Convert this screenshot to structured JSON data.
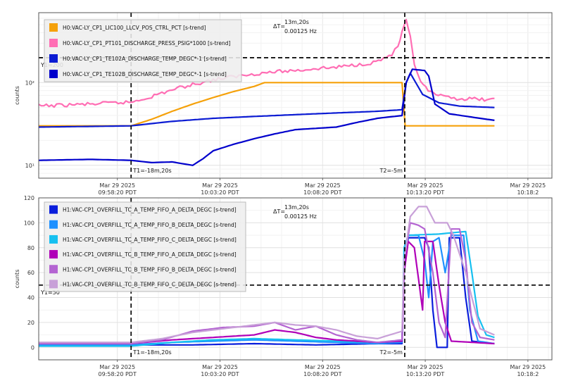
{
  "chart_data": [
    {
      "type": "line",
      "yscale": "log",
      "ylabel": "counts",
      "ylim": [
        7,
        700
      ],
      "x_unit": "minutes",
      "xlim": [
        -4.5,
        20.5
      ],
      "yticks": [
        {
          "v": 10,
          "label": "10¹"
        },
        {
          "v": 100,
          "label": "10²"
        }
      ],
      "xticks": [
        {
          "v": -0.67,
          "date": "Mar 29 2025",
          "time": "09:58:20 PDT"
        },
        {
          "v": 4.33,
          "date": "Mar 29 2025",
          "time": "10:03:20 PDT"
        },
        {
          "v": 9.33,
          "date": "Mar 29 2025",
          "time": "10:08:20 PDT"
        },
        {
          "v": 14.33,
          "date": "Mar 29 2025",
          "time": "10:13:20 PDT"
        },
        {
          "v": 19.33,
          "date": "Mar 29 2025",
          "time": "10:18:2"
        }
      ],
      "cursors": {
        "t1": {
          "x": 0,
          "label": "T1=-18m,20s"
        },
        "t2": {
          "x": 13.33,
          "label": "T2=-5m"
        },
        "y1": {
          "y": 200,
          "label": "Y1=200"
        },
        "delta": {
          "label": "ΔT=",
          "value": "13m,20s",
          "freq": "0.00125 Hz"
        }
      },
      "series": [
        {
          "name": "H0:VAC-LY_CP1_LIC100_LLCV_POS_CTRL_PCT [s-trend]",
          "color": "#f5a10a",
          "points": [
            [
              -4.5,
              30
            ],
            [
              0,
              30
            ],
            [
              1,
              36
            ],
            [
              2,
              45
            ],
            [
              3,
              55
            ],
            [
              4,
              66
            ],
            [
              5,
              78
            ],
            [
              6,
              90
            ],
            [
              6.5,
              100
            ],
            [
              13.2,
              100
            ],
            [
              13.35,
              30
            ],
            [
              17.7,
              30
            ]
          ]
        },
        {
          "name": "H0:VAC-LY_CP1_PT101_DISCHARGE_PRESS_PSIG*1000 [s-trend]",
          "color": "#ff6eb4",
          "points": [
            [
              -4.5,
              52
            ],
            [
              -2,
              55
            ],
            [
              0,
              58
            ],
            [
              1,
              68
            ],
            [
              2,
              82
            ],
            [
              3,
              95
            ],
            [
              4,
              108
            ],
            [
              5,
              118
            ],
            [
              6,
              128
            ],
            [
              7,
              135
            ],
            [
              8,
              140
            ],
            [
              9,
              148
            ],
            [
              10,
              153
            ],
            [
              11,
              165
            ],
            [
              11.8,
              175
            ],
            [
              12.3,
              195
            ],
            [
              12.7,
              220
            ],
            [
              13.0,
              270
            ],
            [
              13.2,
              400
            ],
            [
              13.4,
              550
            ],
            [
              13.6,
              350
            ],
            [
              13.8,
              170
            ],
            [
              14.1,
              100
            ],
            [
              14.6,
              75
            ],
            [
              15.2,
              67
            ],
            [
              16,
              64
            ],
            [
              17.7,
              62
            ]
          ]
        },
        {
          "name": "H0:VAC-LY_CP1_TE102A_DISCHARGE_TEMP_DEGC*-1 [s-trend]",
          "color": "#0b1bd3",
          "points": [
            [
              -4.5,
              29
            ],
            [
              0,
              30
            ],
            [
              2,
              34
            ],
            [
              4,
              37
            ],
            [
              6,
              39
            ],
            [
              8,
              41
            ],
            [
              10,
              43
            ],
            [
              12,
              45
            ],
            [
              13.2,
              47
            ],
            [
              13.4,
              100
            ],
            [
              13.6,
              130
            ],
            [
              14.2,
              72
            ],
            [
              15,
              57
            ],
            [
              16,
              52
            ],
            [
              17.7,
              50
            ]
          ]
        },
        {
          "name": "H0:VAC-LY_CP1_TE102B_DISCHARGE_TEMP_DEGC*-1 [s-trend]",
          "color": "#0000cc",
          "points": [
            [
              -4.5,
              11.5
            ],
            [
              -2,
              11.8
            ],
            [
              0,
              11.5
            ],
            [
              1,
              10.8
            ],
            [
              2,
              11
            ],
            [
              3,
              10
            ],
            [
              3.5,
              12
            ],
            [
              4,
              15
            ],
            [
              5,
              18
            ],
            [
              6,
              21
            ],
            [
              7,
              24
            ],
            [
              8,
              27
            ],
            [
              9,
              28
            ],
            [
              10,
              29
            ],
            [
              11,
              33
            ],
            [
              12,
              37
            ],
            [
              13.2,
              40
            ],
            [
              13.4,
              100
            ],
            [
              13.7,
              145
            ],
            [
              14.3,
              140
            ],
            [
              14.5,
              120
            ],
            [
              14.8,
              55
            ],
            [
              15.5,
              42
            ],
            [
              17,
              37
            ],
            [
              17.7,
              35
            ]
          ]
        }
      ]
    },
    {
      "type": "line",
      "ylabel": "counts",
      "ylim": [
        -10,
        120
      ],
      "x_unit": "minutes",
      "xlim": [
        -4.5,
        20.5
      ],
      "yticks": [
        {
          "v": 0,
          "label": "0"
        },
        {
          "v": 20,
          "label": "20"
        },
        {
          "v": 40,
          "label": "40"
        },
        {
          "v": 60,
          "label": "60"
        },
        {
          "v": 80,
          "label": "80"
        },
        {
          "v": 100,
          "label": "100"
        },
        {
          "v": 120,
          "label": "120"
        }
      ],
      "xticks": [
        {
          "v": -0.67,
          "date": "Mar 29 2025",
          "time": "09:58:20 PDT"
        },
        {
          "v": 4.33,
          "date": "Mar 29 2025",
          "time": "10:03:20 PDT"
        },
        {
          "v": 9.33,
          "date": "Mar 29 2025",
          "time": "10:08:20 PDT"
        },
        {
          "v": 14.33,
          "date": "Mar 29 2025",
          "time": "10:13:20 PDT"
        },
        {
          "v": 19.33,
          "date": "Mar 29 2025",
          "time": "10:18:2"
        }
      ],
      "cursors": {
        "t1": {
          "x": 0,
          "label": "T1=-18m,20s"
        },
        "t2": {
          "x": 13.33,
          "label": "T2=-5m"
        },
        "y1": {
          "y": 50,
          "label": "Y1=50"
        },
        "delta": {
          "label": "ΔT=",
          "value": "13m,20s",
          "freq": "0.00125 Hz"
        }
      },
      "series": [
        {
          "name": "H1:VAC-CP1_OVERFILL_TC_A_TEMP_FIFO_A_DELTA_DEGC [s-trend]",
          "color": "#0a1edc",
          "points": [
            [
              -4.5,
              2
            ],
            [
              0,
              2
            ],
            [
              3,
              2
            ],
            [
              6,
              3
            ],
            [
              9,
              2
            ],
            [
              12,
              3
            ],
            [
              13.2,
              3
            ],
            [
              13.3,
              60
            ],
            [
              13.5,
              88
            ],
            [
              14.3,
              88
            ],
            [
              14.5,
              80
            ],
            [
              14.7,
              30
            ],
            [
              14.9,
              0
            ],
            [
              15.4,
              0
            ],
            [
              15.5,
              88
            ],
            [
              16.0,
              88
            ],
            [
              16.3,
              40
            ],
            [
              16.6,
              5
            ],
            [
              17.7,
              3
            ]
          ]
        },
        {
          "name": "H1:VAC-CP1_OVERFILL_TC_A_TEMP_FIFO_B_DELTA_DEGC [s-trend]",
          "color": "#1e90ff",
          "points": [
            [
              -4.5,
              2
            ],
            [
              0,
              2
            ],
            [
              2,
              4
            ],
            [
              4,
              5
            ],
            [
              6,
              6
            ],
            [
              8,
              5
            ],
            [
              10,
              4
            ],
            [
              12,
              3
            ],
            [
              13.2,
              4
            ],
            [
              13.3,
              70
            ],
            [
              13.5,
              90
            ],
            [
              14.0,
              90
            ],
            [
              14.3,
              70
            ],
            [
              14.5,
              40
            ],
            [
              14.7,
              85
            ],
            [
              15.0,
              88
            ],
            [
              15.3,
              60
            ],
            [
              15.6,
              90
            ],
            [
              16.2,
              90
            ],
            [
              16.5,
              30
            ],
            [
              16.9,
              5
            ],
            [
              17.7,
              3
            ]
          ]
        },
        {
          "name": "H1:VAC-CP1_OVERFILL_TC_A_TEMP_FIFO_C_DELTA_DEGC [s-trend]",
          "color": "#16c0f0",
          "points": [
            [
              -4.5,
              1
            ],
            [
              0,
              1
            ],
            [
              2,
              4
            ],
            [
              4,
              6
            ],
            [
              6,
              7
            ],
            [
              8,
              6
            ],
            [
              10,
              5
            ],
            [
              12,
              4
            ],
            [
              13.2,
              5
            ],
            [
              13.3,
              80
            ],
            [
              13.5,
              90
            ],
            [
              15.0,
              91
            ],
            [
              16.3,
              93
            ],
            [
              16.6,
              60
            ],
            [
              16.9,
              25
            ],
            [
              17.3,
              10
            ],
            [
              17.7,
              8
            ]
          ]
        },
        {
          "name": "H1:VAC-CP1_OVERFILL_TC_B_TEMP_FIFO_A_DELTA_DEGC [s-trend]",
          "color": "#b000b8",
          "points": [
            [
              -4.5,
              3
            ],
            [
              0,
              3
            ],
            [
              2,
              6
            ],
            [
              4,
              8
            ],
            [
              6,
              10
            ],
            [
              7,
              14
            ],
            [
              8,
              12
            ],
            [
              9,
              8
            ],
            [
              10,
              6
            ],
            [
              12,
              4
            ],
            [
              13.2,
              5
            ],
            [
              13.3,
              60
            ],
            [
              13.5,
              85
            ],
            [
              13.8,
              80
            ],
            [
              14.0,
              55
            ],
            [
              14.2,
              30
            ],
            [
              14.3,
              85
            ],
            [
              14.7,
              85
            ],
            [
              15.0,
              50
            ],
            [
              15.3,
              20
            ],
            [
              15.6,
              5
            ],
            [
              17.7,
              3
            ]
          ]
        },
        {
          "name": "H1:VAC-CP1_OVERFILL_TC_B_TEMP_FIFO_B_DELTA_DEGC [s-trend]",
          "color": "#b464d2",
          "points": [
            [
              -4.5,
              3
            ],
            [
              0,
              3
            ],
            [
              1.5,
              6
            ],
            [
              3,
              13
            ],
            [
              4.5,
              16
            ],
            [
              6,
              17
            ],
            [
              7,
              20
            ],
            [
              8,
              14
            ],
            [
              9,
              17
            ],
            [
              10,
              10
            ],
            [
              11,
              6
            ],
            [
              12,
              4
            ],
            [
              13.2,
              6
            ],
            [
              13.3,
              70
            ],
            [
              13.6,
              100
            ],
            [
              14.0,
              98
            ],
            [
              14.3,
              95
            ],
            [
              14.7,
              60
            ],
            [
              15.0,
              20
            ],
            [
              15.3,
              8
            ],
            [
              15.6,
              95
            ],
            [
              16.0,
              95
            ],
            [
              16.3,
              70
            ],
            [
              16.6,
              20
            ],
            [
              17.0,
              8
            ],
            [
              17.7,
              6
            ]
          ]
        },
        {
          "name": "H1:VAC-CP1_OVERFILL_TC_B_TEMP_FIFO_C_DELTA_DEGC [s-trend]",
          "color": "#c8a0d8",
          "points": [
            [
              -4.5,
              4
            ],
            [
              0,
              4
            ],
            [
              1.5,
              7
            ],
            [
              3,
              12
            ],
            [
              4.5,
              15
            ],
            [
              6,
              18
            ],
            [
              7,
              20
            ],
            [
              8,
              18
            ],
            [
              9,
              17
            ],
            [
              10,
              14
            ],
            [
              11,
              9
            ],
            [
              12,
              7
            ],
            [
              13.2,
              13
            ],
            [
              13.3,
              70
            ],
            [
              13.6,
              105
            ],
            [
              14.0,
              113
            ],
            [
              14.4,
              113
            ],
            [
              14.8,
              100
            ],
            [
              15.4,
              100
            ],
            [
              15.7,
              90
            ],
            [
              16.0,
              75
            ],
            [
              16.3,
              60
            ],
            [
              16.6,
              40
            ],
            [
              17.0,
              15
            ],
            [
              17.7,
              10
            ]
          ]
        }
      ]
    }
  ]
}
